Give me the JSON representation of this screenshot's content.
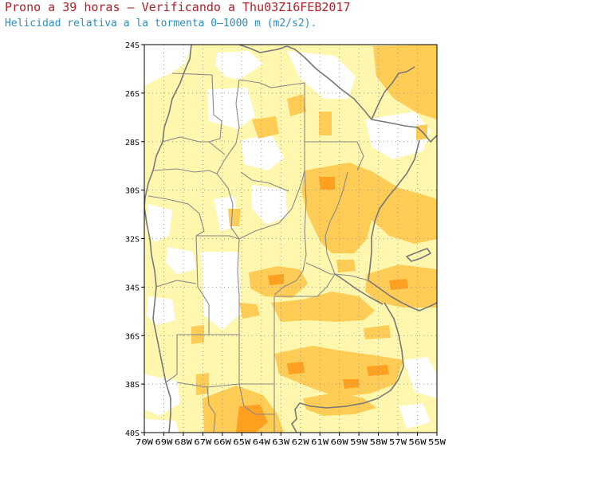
{
  "header": {
    "title": "Prono a 39 horas — Verificando a Thu03Z16FEB2017",
    "subtitle": "Helicidad relativa a la tormenta 0–1000 m (m2/s2)."
  },
  "map": {
    "lon_range": [
      -70,
      -55
    ],
    "lat_range": [
      -40,
      -24
    ],
    "lat_ticks": [
      {
        "value": -24,
        "label": "24S"
      },
      {
        "value": -26,
        "label": "26S"
      },
      {
        "value": -28,
        "label": "28S"
      },
      {
        "value": -30,
        "label": "30S"
      },
      {
        "value": -32,
        "label": "32S"
      },
      {
        "value": -34,
        "label": "34S"
      },
      {
        "value": -36,
        "label": "36S"
      },
      {
        "value": -38,
        "label": "38S"
      },
      {
        "value": -40,
        "label": "40S"
      }
    ],
    "lon_ticks": [
      {
        "value": -70,
        "label": "70W"
      },
      {
        "value": -69,
        "label": "69W"
      },
      {
        "value": -68,
        "label": "68W"
      },
      {
        "value": -67,
        "label": "67W"
      },
      {
        "value": -66,
        "label": "66W"
      },
      {
        "value": -65,
        "label": "65W"
      },
      {
        "value": -64,
        "label": "64W"
      },
      {
        "value": -63,
        "label": "63W"
      },
      {
        "value": -62,
        "label": "62W"
      },
      {
        "value": -61,
        "label": "61W"
      },
      {
        "value": -60,
        "label": "60W"
      },
      {
        "value": -59,
        "label": "59W"
      },
      {
        "value": -58,
        "label": "58W"
      },
      {
        "value": -57,
        "label": "57W"
      },
      {
        "value": -56,
        "label": "56W"
      },
      {
        "value": -55,
        "label": "55W"
      }
    ],
    "grid": "dotted",
    "colors": {
      "shade_low": "#fff7ad",
      "shade_mid": "#ffcc55",
      "shade_high": "#ffa020",
      "border": "#777777",
      "grid": "#999999"
    }
  }
}
